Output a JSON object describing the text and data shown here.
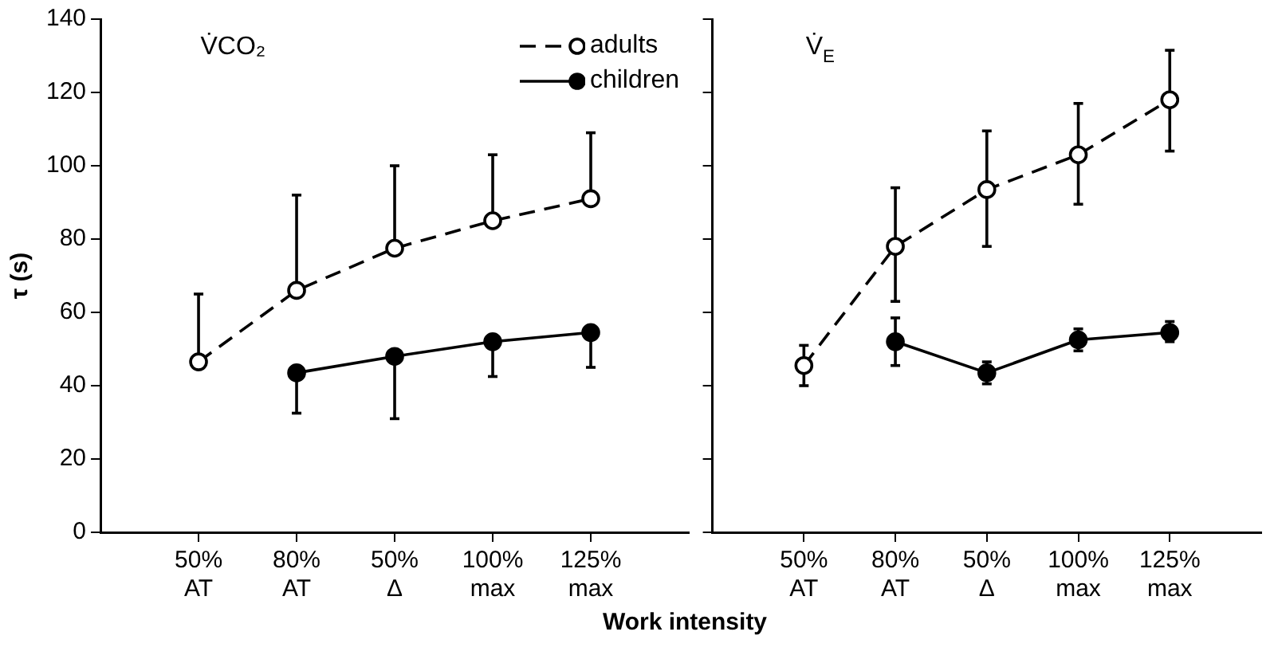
{
  "chart_data": [
    {
      "type": "line",
      "title": "V̇CO₂",
      "ylabel": "τ (s)",
      "xlabel": "Work intensity",
      "categories": [
        "50% AT",
        "80% AT",
        "50% Δ",
        "100% max",
        "125% max"
      ],
      "ylim": [
        0,
        140
      ],
      "yticks": [
        0,
        20,
        40,
        60,
        80,
        100,
        120,
        140
      ],
      "grid": false,
      "legend": "top right",
      "marker": "circle",
      "series": [
        {
          "name": "adults",
          "color": "#000000",
          "line_style": "dashed",
          "values": [
            46.5,
            66,
            77.5,
            85,
            91
          ],
          "errors": [
            [
              46.5,
              65
            ],
            [
              66,
              92
            ],
            [
              77.5,
              100
            ],
            [
              85,
              103
            ],
            [
              91,
              109
            ]
          ]
        },
        {
          "name": "children",
          "color": "#000000",
          "line_style": "solid",
          "values": [
            null,
            43.5,
            48,
            52,
            54.5
          ],
          "errors": [
            null,
            [
              32.5,
              43.5
            ],
            [
              31,
              48
            ],
            [
              42.5,
              52
            ],
            [
              45,
              54.5
            ]
          ]
        }
      ]
    },
    {
      "type": "line",
      "title": "V̇$_{E}$",
      "categories": [
        "50% AT",
        "80% AT",
        "50% Δ",
        "100% max",
        "125% max"
      ],
      "ylim": [
        0,
        140
      ],
      "yticks": [
        0,
        20,
        40,
        60,
        80,
        100,
        120,
        140
      ],
      "tick_labels": "x",
      "grid": false,
      "marker": "circle",
      "series": [
        {
          "color": "#000000",
          "line_style": "dashed",
          "values": [
            45.5,
            78,
            93.5,
            103,
            118
          ],
          "errors": [
            [
              40,
              51
            ],
            [
              63,
              94
            ],
            [
              78,
              109.5
            ],
            [
              89.5,
              117
            ],
            [
              104,
              131.5
            ]
          ]
        },
        {
          "color": "#000000",
          "line_style": "solid",
          "values": [
            null,
            52,
            43.5,
            52.5,
            54.5
          ],
          "errors": [
            null,
            [
              45.5,
              58.5
            ],
            [
              40.5,
              46.5
            ],
            [
              49.5,
              55.5
            ],
            [
              52,
              57.5
            ]
          ]
        }
      ]
    }
  ]
}
